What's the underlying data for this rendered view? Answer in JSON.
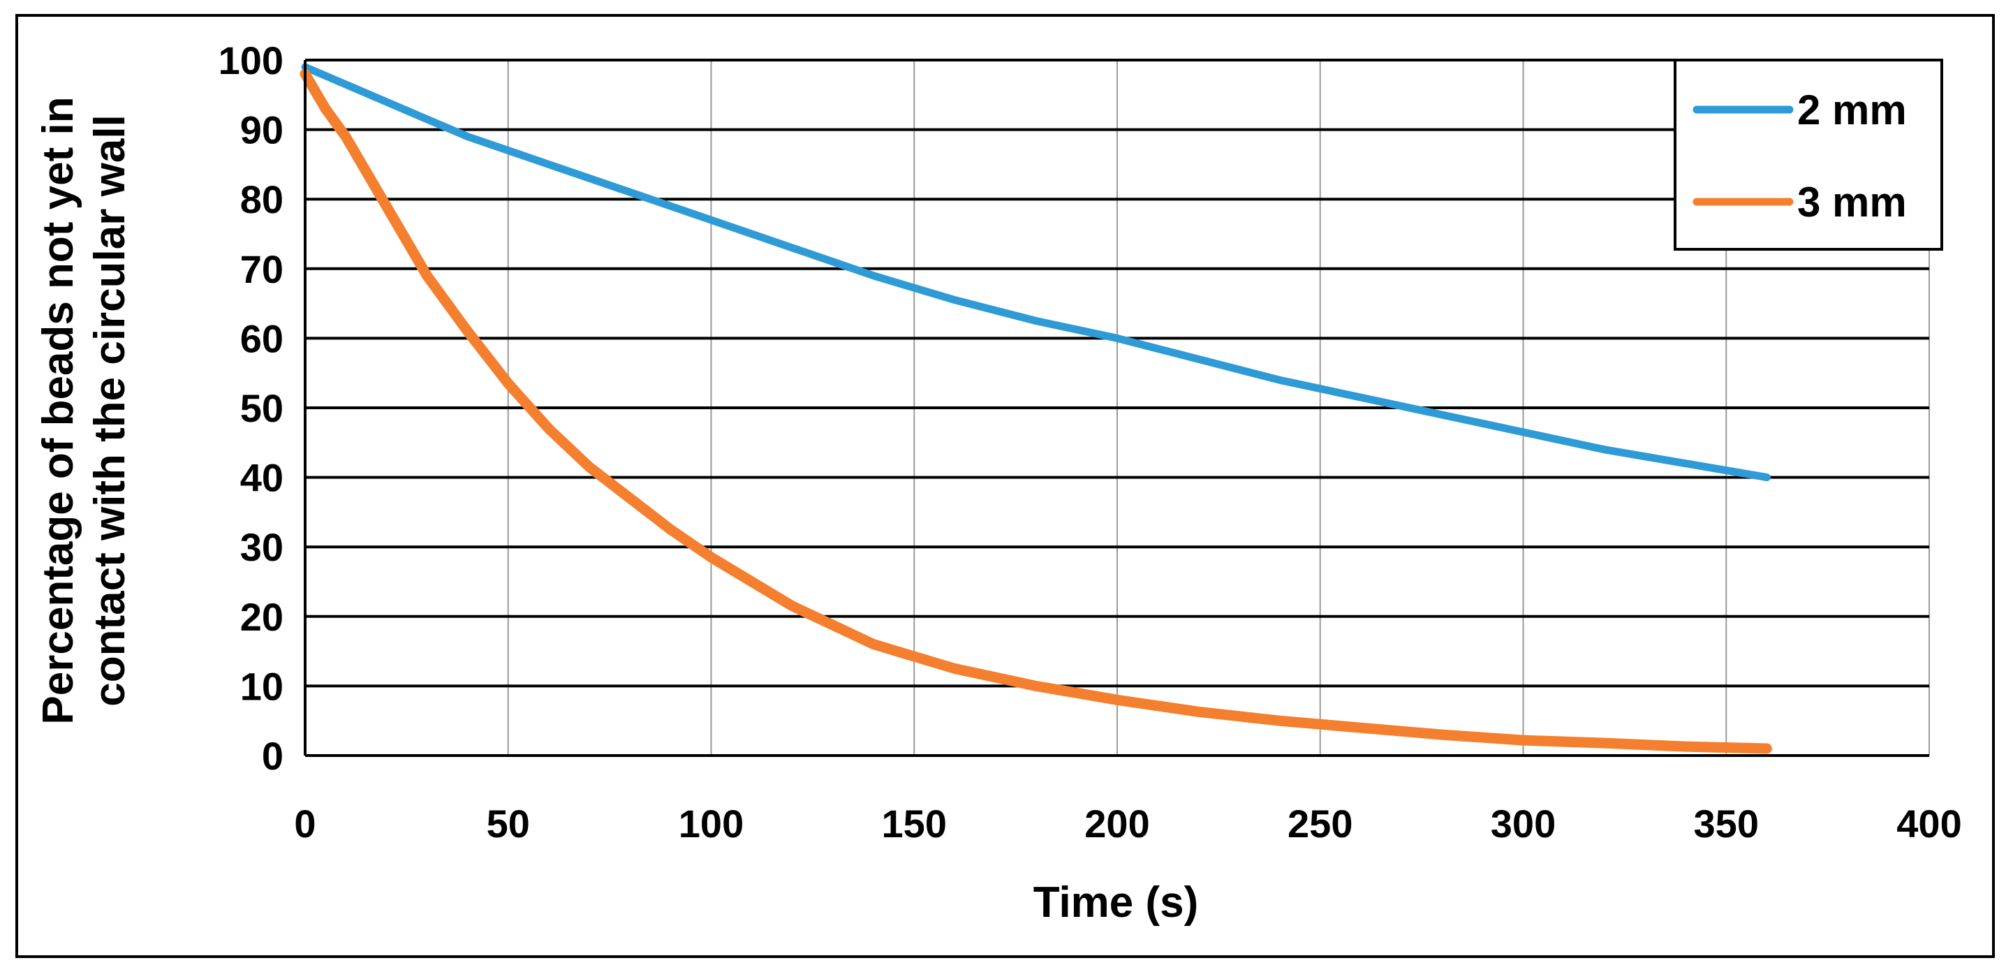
{
  "chart_data": {
    "type": "line",
    "title": "",
    "xlabel": "Time (s)",
    "ylabel_lines": [
      "Percentage of beads not yet in",
      "contact with the circular wall"
    ],
    "xlim": [
      0,
      400
    ],
    "ylim": [
      0,
      100
    ],
    "x_ticks": [
      0,
      50,
      100,
      150,
      200,
      250,
      300,
      350,
      400
    ],
    "y_ticks": [
      0,
      10,
      20,
      30,
      40,
      50,
      60,
      70,
      80,
      90,
      100
    ],
    "x_tick_labels": [
      "0",
      "50",
      "100",
      "150",
      "200",
      "250",
      "300",
      "350",
      "400"
    ],
    "y_tick_labels": [
      "0",
      "10",
      "20",
      "30",
      "40",
      "50",
      "60",
      "70",
      "80",
      "90",
      "100"
    ],
    "grid": true,
    "legend_position": "top-right",
    "series": [
      {
        "name": "2 mm",
        "color": "#2E9BD6",
        "x": [
          0,
          20,
          40,
          50,
          60,
          80,
          100,
          120,
          140,
          160,
          180,
          200,
          220,
          240,
          260,
          280,
          300,
          320,
          340,
          360
        ],
        "y": [
          99,
          94,
          89,
          87,
          85,
          81,
          77,
          73,
          69,
          65.5,
          62.5,
          60,
          57,
          54,
          51.5,
          49,
          46.5,
          44,
          42,
          40
        ]
      },
      {
        "name": "3 mm",
        "color": "#F47F2E",
        "x": [
          0,
          5,
          10,
          20,
          30,
          40,
          50,
          60,
          70,
          80,
          90,
          100,
          120,
          140,
          160,
          180,
          200,
          220,
          240,
          260,
          280,
          300,
          320,
          340,
          360
        ],
        "y": [
          98,
          93,
          89,
          79,
          69,
          61,
          53.5,
          47,
          41.5,
          37,
          32.5,
          28.5,
          21.5,
          16,
          12.5,
          10,
          8,
          6.3,
          5,
          4,
          3,
          2.2,
          1.8,
          1.3,
          1
        ]
      }
    ]
  }
}
